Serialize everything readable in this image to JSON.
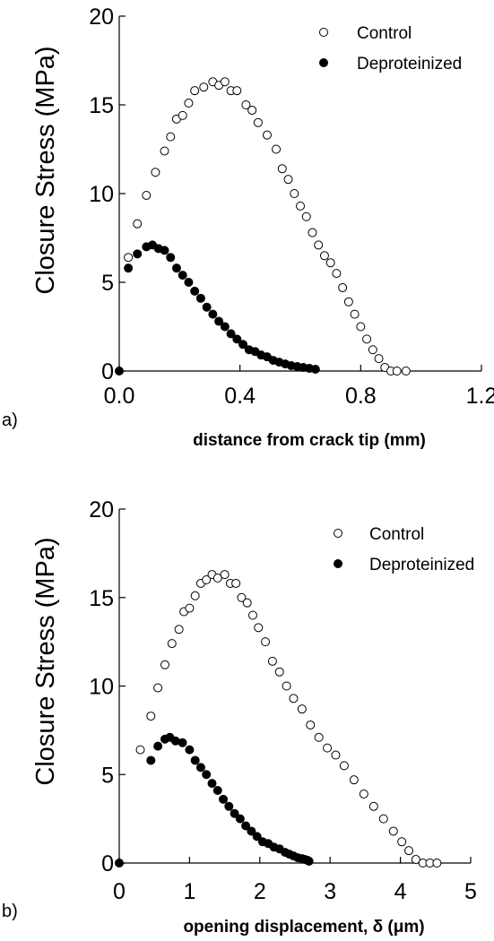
{
  "chart_data": [
    {
      "type": "scatter",
      "panel_label": "a)",
      "xlabel": "distance from crack tip (mm)",
      "ylabel": "Closure Stress (MPa)",
      "xlim": [
        0,
        1.2
      ],
      "ylim": [
        0,
        20
      ],
      "xticks": [
        "0.0",
        "0.4",
        "0.8",
        "1.2"
      ],
      "yticks": [
        "0",
        "5",
        "10",
        "15",
        "20"
      ],
      "legend_position": "top-right",
      "series": [
        {
          "name": "Control",
          "marker": "open-circle",
          "x": [
            0.03,
            0.06,
            0.09,
            0.12,
            0.15,
            0.17,
            0.19,
            0.21,
            0.23,
            0.25,
            0.28,
            0.31,
            0.33,
            0.35,
            0.37,
            0.39,
            0.42,
            0.44,
            0.46,
            0.49,
            0.52,
            0.54,
            0.56,
            0.58,
            0.6,
            0.62,
            0.64,
            0.66,
            0.68,
            0.7,
            0.72,
            0.74,
            0.76,
            0.78,
            0.8,
            0.82,
            0.84,
            0.86,
            0.88,
            0.9,
            0.92,
            0.95
          ],
          "y": [
            6.4,
            8.3,
            9.9,
            11.2,
            12.4,
            13.2,
            14.2,
            14.4,
            15.1,
            15.8,
            16.0,
            16.3,
            16.1,
            16.3,
            15.8,
            15.8,
            15.0,
            14.7,
            14.0,
            13.3,
            12.5,
            11.4,
            10.8,
            10.0,
            9.3,
            8.7,
            7.8,
            7.1,
            6.5,
            6.1,
            5.5,
            4.7,
            3.9,
            3.2,
            2.5,
            1.8,
            1.2,
            0.7,
            0.2,
            0.0,
            0.0,
            0.0
          ],
          "color": "#000000"
        },
        {
          "name": "Deproteinized",
          "marker": "filled-circle",
          "x": [
            0.0,
            0.03,
            0.06,
            0.09,
            0.11,
            0.13,
            0.15,
            0.17,
            0.19,
            0.21,
            0.23,
            0.25,
            0.27,
            0.29,
            0.31,
            0.33,
            0.35,
            0.37,
            0.39,
            0.41,
            0.43,
            0.45,
            0.47,
            0.49,
            0.51,
            0.53,
            0.55,
            0.57,
            0.59,
            0.61,
            0.63,
            0.65
          ],
          "y": [
            0.0,
            5.8,
            6.6,
            7.0,
            7.1,
            6.9,
            6.8,
            6.4,
            5.8,
            5.4,
            5.0,
            4.5,
            4.1,
            3.6,
            3.2,
            2.8,
            2.5,
            2.1,
            1.8,
            1.5,
            1.2,
            1.1,
            0.9,
            0.8,
            0.6,
            0.5,
            0.4,
            0.3,
            0.25,
            0.2,
            0.15,
            0.1
          ],
          "color": "#000000"
        }
      ]
    },
    {
      "type": "scatter",
      "panel_label": "b)",
      "xlabel": "opening displacement, δ (μm)",
      "ylabel": "Closure Stress (MPa)",
      "xlim": [
        0,
        5
      ],
      "ylim": [
        0,
        20
      ],
      "xticks": [
        "0",
        "1",
        "2",
        "3",
        "4",
        "5"
      ],
      "yticks": [
        "0",
        "5",
        "10",
        "15",
        "20"
      ],
      "legend_position": "top-right",
      "series": [
        {
          "name": "Control",
          "marker": "open-circle",
          "x": [
            0.3,
            0.45,
            0.55,
            0.65,
            0.75,
            0.85,
            0.92,
            1.0,
            1.08,
            1.16,
            1.24,
            1.32,
            1.4,
            1.5,
            1.58,
            1.66,
            1.74,
            1.82,
            1.9,
            1.98,
            2.08,
            2.18,
            2.28,
            2.38,
            2.48,
            2.6,
            2.72,
            2.84,
            2.96,
            3.08,
            3.2,
            3.34,
            3.48,
            3.62,
            3.76,
            3.9,
            4.02,
            4.12,
            4.22,
            4.32,
            4.42,
            4.52
          ],
          "y": [
            6.4,
            8.3,
            9.9,
            11.2,
            12.4,
            13.2,
            14.2,
            14.4,
            15.1,
            15.8,
            16.0,
            16.3,
            16.1,
            16.3,
            15.8,
            15.8,
            15.0,
            14.7,
            14.0,
            13.3,
            12.5,
            11.4,
            10.8,
            10.0,
            9.3,
            8.7,
            7.8,
            7.1,
            6.5,
            6.1,
            5.5,
            4.7,
            3.9,
            3.2,
            2.5,
            1.8,
            1.2,
            0.7,
            0.2,
            0.0,
            0.0,
            0.0
          ],
          "color": "#000000"
        },
        {
          "name": "Deproteinized",
          "marker": "filled-circle",
          "x": [
            0.0,
            0.45,
            0.55,
            0.65,
            0.72,
            0.8,
            0.9,
            1.0,
            1.08,
            1.16,
            1.24,
            1.32,
            1.4,
            1.48,
            1.56,
            1.64,
            1.72,
            1.8,
            1.88,
            1.96,
            2.04,
            2.12,
            2.2,
            2.28,
            2.36,
            2.42,
            2.48,
            2.54,
            2.6,
            2.64,
            2.68,
            2.7
          ],
          "y": [
            0.0,
            5.8,
            6.6,
            7.0,
            7.1,
            6.9,
            6.8,
            6.4,
            5.8,
            5.4,
            5.0,
            4.5,
            4.1,
            3.6,
            3.2,
            2.8,
            2.5,
            2.1,
            1.8,
            1.5,
            1.2,
            1.1,
            0.9,
            0.8,
            0.6,
            0.5,
            0.4,
            0.3,
            0.25,
            0.2,
            0.15,
            0.1
          ],
          "color": "#000000"
        }
      ]
    }
  ]
}
